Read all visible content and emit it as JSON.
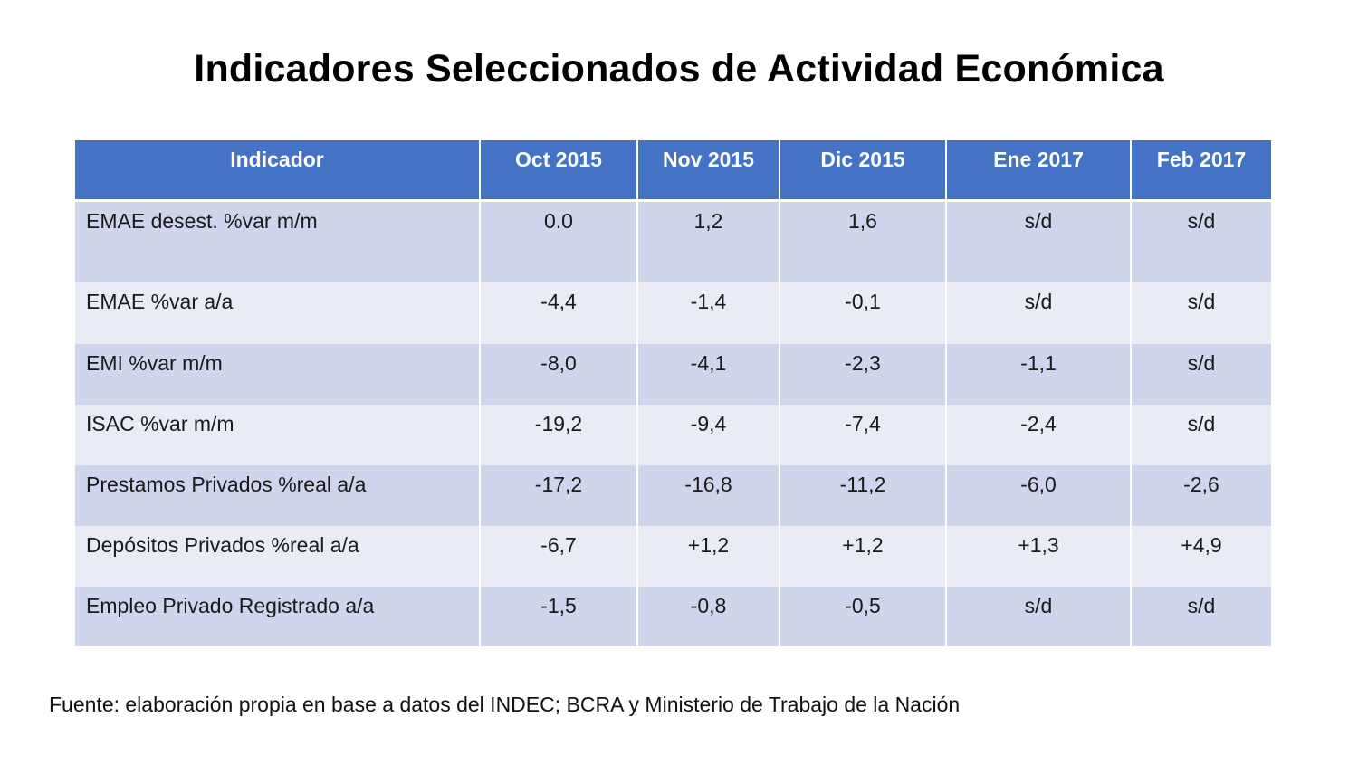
{
  "title": "Indicadores Seleccionados de Actividad Económica",
  "table": {
    "headers": [
      "Indicador",
      "Oct 2015",
      "Nov 2015",
      "Dic 2015",
      "Ene 2017",
      "Feb 2017"
    ],
    "rows": [
      [
        "EMAE desest. %var m/m",
        "0.0",
        "1,2",
        "1,6",
        "s/d",
        "s/d"
      ],
      [
        "EMAE %var a/a",
        "-4,4",
        "-1,4",
        "-0,1",
        "s/d",
        "s/d"
      ],
      [
        "EMI %var m/m",
        "-8,0",
        "-4,1",
        "-2,3",
        "-1,1",
        "s/d"
      ],
      [
        "ISAC %var m/m",
        "-19,2",
        "-9,4",
        "-7,4",
        "-2,4",
        "s/d"
      ],
      [
        "Prestamos Privados %real a/a",
        "-17,2",
        "-16,8",
        "-11,2",
        "-6,0",
        "-2,6"
      ],
      [
        "Depósitos Privados %real a/a",
        "-6,7",
        "+1,2",
        "+1,2",
        "+1,3",
        "+4,9"
      ],
      [
        "Empleo Privado Registrado a/a",
        "-1,5",
        "-0,8",
        "-0,5",
        "s/d",
        "s/d"
      ]
    ]
  },
  "source": "Fuente: elaboración propia en base a datos del INDEC; BCRA y Ministerio de Trabajo de la Nación",
  "colors": {
    "header_bg": "#4472c4",
    "row_dark": "#cfd5ea",
    "row_light": "#e9ebf5"
  }
}
